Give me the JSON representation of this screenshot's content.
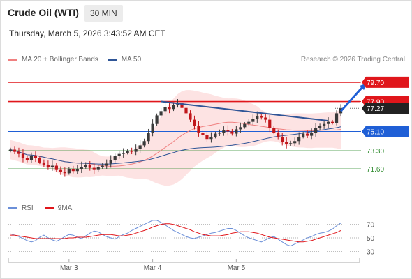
{
  "header": {
    "title": "Crude Oil (WTI)",
    "timeframe": "30 MIN",
    "datetime": "Thursday, March 5, 2026 3:43:52 AM CET"
  },
  "legend": {
    "ma20": "MA 20 + Bollinger Bands",
    "ma50": "MA 50",
    "credit": "Research © 2026 Trading Central"
  },
  "rsi_legend": {
    "rsi": "RSI",
    "ma": "9MA"
  },
  "colors": {
    "resistance": "#e0161b",
    "pivot": "#1f5fd6",
    "support": "#2e8b2e",
    "ma20": "#f08080",
    "ma50": "#2f5597",
    "band_fill": "#fde3e3",
    "candle_up": "#3a3a3a",
    "candle_down": "#c0161b",
    "rsi": "#6b8fd8",
    "rsi_ma": "#e0161b"
  },
  "chart_data": [
    {
      "type": "candlestick",
      "title": "Crude Oil (WTI)",
      "ylim": [
        69.0,
        81.0
      ],
      "x_ticks": [
        "Mar 3",
        "Mar 4",
        "Mar 5"
      ],
      "levels": [
        {
          "label": "79.70",
          "value": 79.7,
          "kind": "resistance",
          "style": "tag"
        },
        {
          "label": "77.90",
          "value": 77.9,
          "kind": "resistance",
          "style": "tag"
        },
        {
          "label": "77.27",
          "value": 77.27,
          "kind": "last",
          "style": "tag"
        },
        {
          "label": "75.10",
          "value": 75.1,
          "kind": "pivot",
          "style": "tag"
        },
        {
          "label": "73.30",
          "value": 73.3,
          "kind": "support",
          "style": "text"
        },
        {
          "label": "71.60",
          "value": 71.6,
          "kind": "support",
          "style": "text"
        }
      ],
      "trendline": {
        "from": [
          36,
          77.9
        ],
        "to": [
          76,
          76.1
        ]
      },
      "arrow": {
        "from": [
          79,
          77.0
        ],
        "to": [
          85,
          79.6
        ]
      },
      "closes": [
        73.4,
        73.2,
        73.0,
        72.6,
        72.4,
        72.8,
        72.6,
        72.2,
        72.0,
        71.8,
        71.9,
        71.5,
        71.3,
        71.2,
        71.6,
        71.4,
        71.6,
        71.8,
        72.0,
        71.7,
        71.5,
        71.8,
        71.9,
        72.1,
        72.4,
        72.8,
        73.0,
        73.1,
        73.3,
        73.2,
        73.5,
        73.8,
        74.2,
        75.0,
        75.8,
        76.6,
        77.0,
        77.4,
        77.2,
        77.6,
        77.8,
        77.3,
        76.8,
        76.2,
        75.6,
        75.0,
        74.8,
        74.4,
        74.6,
        74.9,
        75.0,
        75.2,
        75.1,
        74.9,
        75.3,
        75.5,
        75.8,
        76.0,
        76.3,
        76.5,
        76.4,
        76.2,
        75.4,
        75.0,
        74.6,
        74.1,
        73.9,
        74.0,
        74.2,
        74.6,
        74.9,
        74.7,
        75.0,
        75.4,
        75.6,
        75.8,
        76.0,
        75.9,
        76.8,
        77.27
      ],
      "rsi": {
        "ylim": [
          20,
          80
        ],
        "ticks": [
          70,
          50,
          30
        ],
        "values": [
          56,
          54,
          52,
          49,
          46,
          44,
          46,
          51,
          54,
          50,
          47,
          45,
          48,
          52,
          55,
          54,
          51,
          49,
          53,
          57,
          60,
          59,
          55,
          52,
          50,
          48,
          52,
          55,
          57,
          61,
          64,
          67,
          70,
          73,
          76,
          76,
          73,
          69,
          65,
          61,
          58,
          55,
          52,
          50,
          49,
          51,
          53,
          55,
          57,
          58,
          60,
          62,
          64,
          64,
          61,
          57,
          53,
          50,
          48,
          46,
          44,
          47,
          50,
          52,
          48,
          44,
          40,
          38,
          41,
          44,
          47,
          50,
          52,
          55,
          57,
          58,
          60,
          63,
          68,
          72
        ],
        "ma": [
          54,
          54,
          53,
          52,
          51,
          50,
          49,
          49,
          49,
          49,
          49,
          49,
          49,
          49,
          50,
          50,
          51,
          51,
          51,
          52,
          53,
          54,
          55,
          55,
          55,
          54,
          53,
          53,
          54,
          55,
          57,
          59,
          61,
          63,
          66,
          68,
          70,
          71,
          71,
          70,
          68,
          66,
          64,
          62,
          59,
          57,
          55,
          54,
          53,
          53,
          53,
          54,
          55,
          57,
          58,
          59,
          59,
          59,
          58,
          57,
          55,
          53,
          51,
          50,
          49,
          48,
          47,
          46,
          45,
          44,
          44,
          45,
          46,
          48,
          50,
          52,
          54,
          56,
          58,
          61
        ]
      }
    }
  ]
}
